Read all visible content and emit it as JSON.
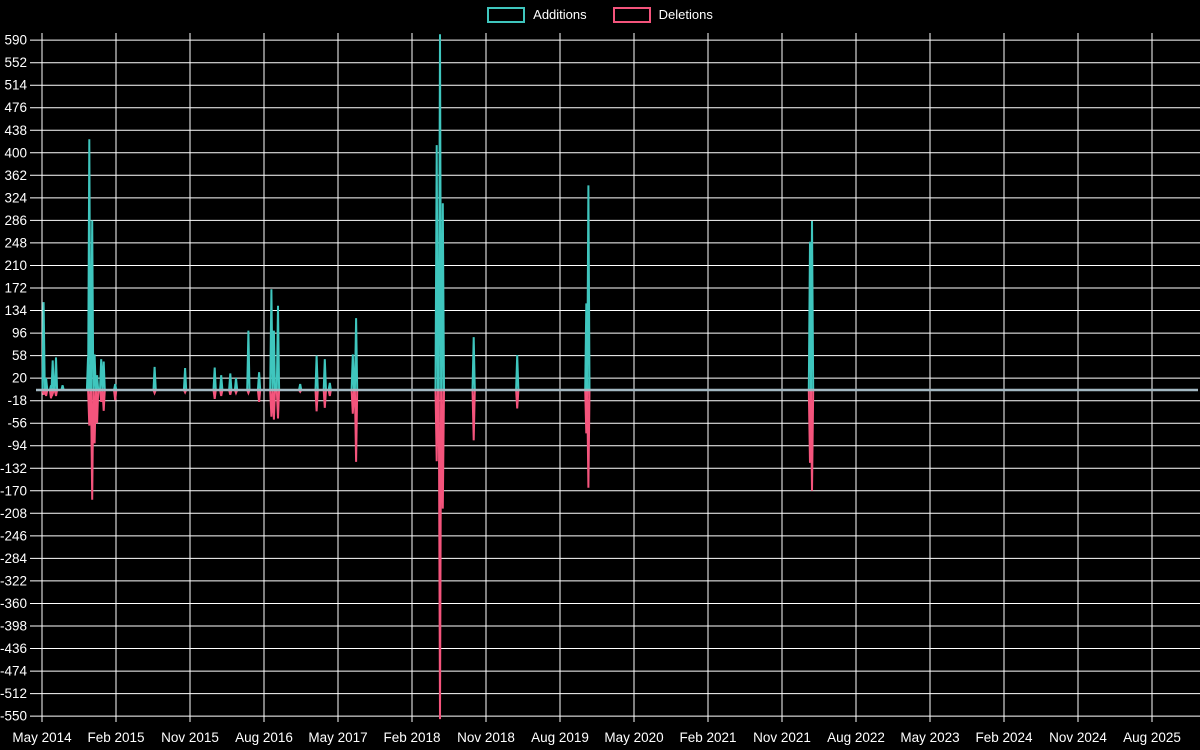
{
  "legend": {
    "items": [
      {
        "label": "Additions",
        "color": "#3fc6be"
      },
      {
        "label": "Deletions",
        "color": "#f4547c"
      }
    ]
  },
  "chart_data": {
    "type": "line",
    "title": "",
    "xlabel": "",
    "ylabel": "",
    "background_color": "#000000",
    "grid": true,
    "grid_color": "#ffffff",
    "text_color": "#ffffff",
    "zero_line_color": "#a3b8c2",
    "legend_position": "top-center",
    "y_axis": {
      "min": -550,
      "max": 590,
      "step": 38,
      "ticks": [
        590,
        552,
        514,
        476,
        438,
        400,
        362,
        324,
        286,
        248,
        210,
        172,
        134,
        96,
        58,
        20,
        -18,
        -56,
        -94,
        -132,
        -170,
        -208,
        -246,
        -284,
        -322,
        -360,
        -398,
        -436,
        -474,
        -512,
        -550
      ]
    },
    "x_axis": {
      "ticks": [
        "May 2014",
        "Feb 2015",
        "Nov 2015",
        "Aug 2016",
        "May 2017",
        "Feb 2018",
        "Nov 2018",
        "Aug 2019",
        "May 2020",
        "Feb 2021",
        "Nov 2021",
        "Aug 2022",
        "May 2023",
        "Feb 2024",
        "Nov 2024",
        "Aug 2025"
      ],
      "months_per_tick": 9,
      "total_months": 140.6
    },
    "series": [
      {
        "name": "Additions",
        "color": "#3fc6be",
        "key": "additions"
      },
      {
        "name": "Deletions",
        "color": "#f4547c",
        "key": "deletions"
      }
    ],
    "events_note": "m = months after May 2014; values read from gridlines; baseline 0 elsewhere",
    "events": [
      {
        "m": 0.2,
        "additions": 148,
        "deletions": -8
      },
      {
        "m": 0.5,
        "additions": 20,
        "deletions": -10
      },
      {
        "m": 1.1,
        "additions": 8,
        "deletions": -14
      },
      {
        "m": 1.3,
        "additions": 50,
        "deletions": -6
      },
      {
        "m": 1.7,
        "additions": 55,
        "deletions": -10
      },
      {
        "m": 2.5,
        "additions": 8,
        "deletions": 0
      },
      {
        "m": 5.6,
        "additions": 55,
        "deletions": 0
      },
      {
        "m": 5.75,
        "additions": 423,
        "deletions": -60
      },
      {
        "m": 6.1,
        "additions": 286,
        "deletions": -185
      },
      {
        "m": 6.4,
        "additions": 60,
        "deletions": -90
      },
      {
        "m": 6.7,
        "additions": 25,
        "deletions": -56
      },
      {
        "m": 7.2,
        "additions": 52,
        "deletions": -20
      },
      {
        "m": 7.5,
        "additions": 48,
        "deletions": -35
      },
      {
        "m": 8.9,
        "additions": 10,
        "deletions": -17
      },
      {
        "m": 13.7,
        "additions": 39,
        "deletions": -5
      },
      {
        "m": 17.4,
        "additions": 37,
        "deletions": -4
      },
      {
        "m": 21.0,
        "additions": 38,
        "deletions": -15
      },
      {
        "m": 21.8,
        "additions": 25,
        "deletions": -10
      },
      {
        "m": 22.9,
        "additions": 28,
        "deletions": -8
      },
      {
        "m": 23.6,
        "additions": 20,
        "deletions": -5
      },
      {
        "m": 25.1,
        "additions": 100,
        "deletions": -5
      },
      {
        "m": 26.4,
        "additions": 30,
        "deletions": -20
      },
      {
        "m": 27.9,
        "additions": 170,
        "deletions": -45
      },
      {
        "m": 28.2,
        "additions": 100,
        "deletions": -50
      },
      {
        "m": 28.7,
        "additions": 142,
        "deletions": -48
      },
      {
        "m": 31.4,
        "additions": 10,
        "deletions": -3
      },
      {
        "m": 33.4,
        "additions": 58,
        "deletions": -36
      },
      {
        "m": 34.4,
        "additions": 52,
        "deletions": -30
      },
      {
        "m": 35.0,
        "additions": 12,
        "deletions": -10
      },
      {
        "m": 37.8,
        "additions": 60,
        "deletions": -40
      },
      {
        "m": 38.2,
        "additions": 121,
        "deletions": -121
      },
      {
        "m": 48.0,
        "additions": 413,
        "deletions": -120
      },
      {
        "m": 48.4,
        "additions": 600,
        "deletions": -555
      },
      {
        "m": 48.75,
        "additions": 315,
        "deletions": -200
      },
      {
        "m": 52.5,
        "additions": 89,
        "deletions": -85
      },
      {
        "m": 57.8,
        "additions": 59,
        "deletions": -31
      },
      {
        "m": 66.2,
        "additions": 146,
        "deletions": -73
      },
      {
        "m": 66.45,
        "additions": 345,
        "deletions": -165
      },
      {
        "m": 93.4,
        "additions": 250,
        "deletions": -123
      },
      {
        "m": 93.65,
        "additions": 285,
        "deletions": -170
      }
    ]
  }
}
